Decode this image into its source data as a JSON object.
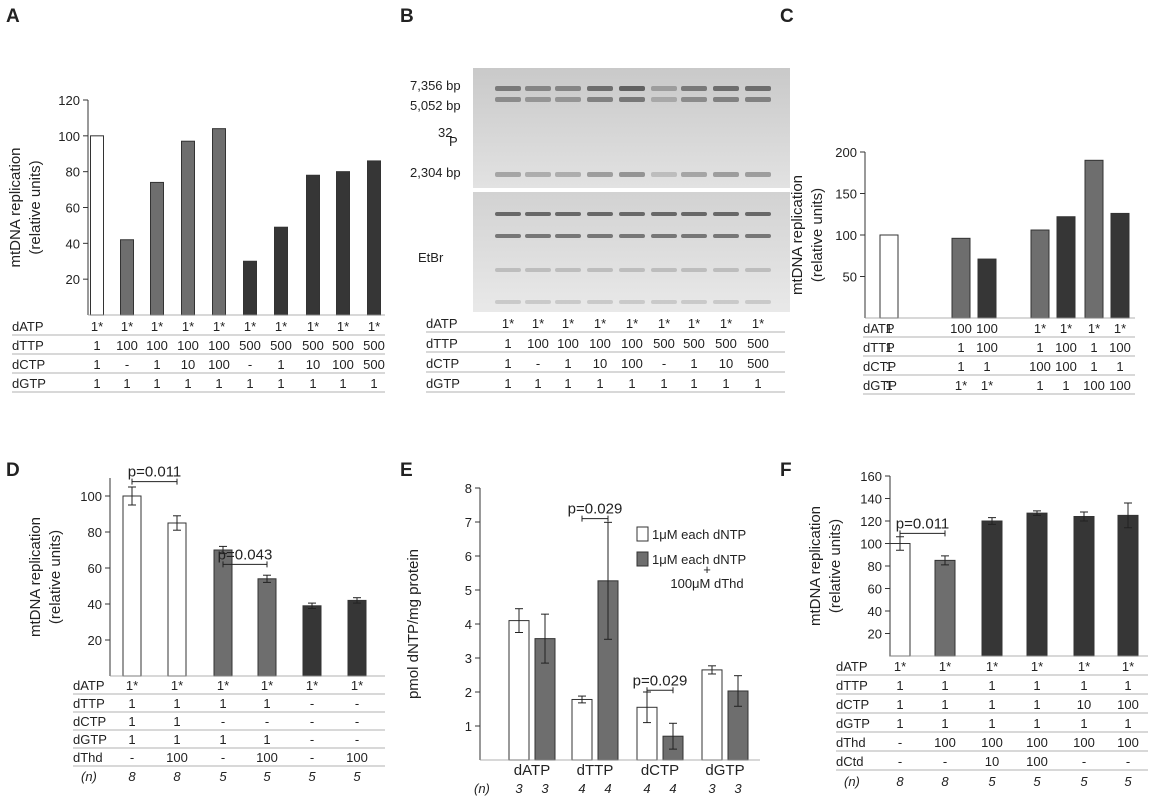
{
  "panel_labels": [
    "A",
    "B",
    "C",
    "D",
    "E",
    "F"
  ],
  "colors": {
    "white": "#ffffff",
    "light": "#6e6e6e",
    "dark": "#363636",
    "axis": "#333333",
    "rule": "#999999"
  },
  "chart_data": [
    {
      "panel": "A",
      "type": "bar",
      "ylabel": [
        "mtDNA replication",
        "(relative units)"
      ],
      "ylim": [
        0,
        120
      ],
      "yticks": [
        20,
        40,
        60,
        80,
        100,
        120
      ],
      "values": [
        100,
        42,
        74,
        97,
        104,
        30,
        49,
        78,
        80,
        86
      ],
      "fills": [
        "white",
        "light",
        "light",
        "light",
        "light",
        "dark",
        "dark",
        "dark",
        "dark",
        "dark"
      ],
      "table": [
        {
          "label": "dATP",
          "values": [
            "1*",
            "1*",
            "1*",
            "1*",
            "1*",
            "1*",
            "1*",
            "1*",
            "1*",
            "1*"
          ]
        },
        {
          "label": "dTTP",
          "values": [
            "1",
            "100",
            "100",
            "100",
            "100",
            "500",
            "500",
            "500",
            "500",
            "500"
          ]
        },
        {
          "label": "dCTP",
          "values": [
            "1",
            "-",
            "1",
            "10",
            "100",
            "-",
            "1",
            "10",
            "100",
            "500"
          ]
        },
        {
          "label": "dGTP",
          "values": [
            "1",
            "1",
            "1",
            "1",
            "1",
            "1",
            "1",
            "1",
            "1",
            "1"
          ]
        }
      ]
    },
    {
      "panel": "C",
      "type": "bar",
      "ylabel": [
        "mtDNA replication",
        "(relative units)"
      ],
      "ylim": [
        0,
        200
      ],
      "yticks": [
        50,
        100,
        150,
        200
      ],
      "values": [
        100,
        96,
        71,
        106,
        122,
        190,
        126
      ],
      "fills": [
        "white",
        "light",
        "dark",
        "light",
        "dark",
        "light",
        "dark"
      ],
      "table": [
        {
          "label": "dATP",
          "values": [
            "1",
            "100",
            "100",
            "1*",
            "1*",
            "1*",
            "1*"
          ]
        },
        {
          "label": "dTTP",
          "values": [
            "1",
            "1",
            "100",
            "1",
            "100",
            "1",
            "100"
          ]
        },
        {
          "label": "dCTP",
          "values": [
            "1",
            "1",
            "1",
            "100",
            "100",
            "1",
            "1"
          ]
        },
        {
          "label": "dGTP",
          "values": [
            "1",
            "1*",
            "1*",
            "1",
            "1",
            "100",
            "100"
          ]
        }
      ]
    },
    {
      "panel": "D",
      "type": "bar",
      "ylabel": [
        "mtDNA replication",
        "(relative units)"
      ],
      "ylim": [
        0,
        110
      ],
      "yticks": [
        20,
        40,
        60,
        80,
        100
      ],
      "values": [
        100,
        85,
        70,
        54,
        39,
        42
      ],
      "errors": [
        5,
        4,
        2,
        2,
        1.5,
        1.5
      ],
      "fills": [
        "white",
        "white",
        "light",
        "light",
        "dark",
        "dark"
      ],
      "annotations": [
        {
          "text": "p=0.011",
          "from": 0,
          "to": 1,
          "y": 108
        },
        {
          "text": "p=0.043",
          "from": 2,
          "to": 3,
          "y": 62
        }
      ],
      "table": [
        {
          "label": "dATP",
          "values": [
            "1*",
            "1*",
            "1*",
            "1*",
            "1*",
            "1*"
          ]
        },
        {
          "label": "dTTP",
          "values": [
            "1",
            "1",
            "1",
            "1",
            "-",
            "-"
          ]
        },
        {
          "label": "dCTP",
          "values": [
            "1",
            "1",
            "-",
            "-",
            "-",
            "-"
          ]
        },
        {
          "label": "dGTP",
          "values": [
            "1",
            "1",
            "1",
            "1",
            "-",
            "-"
          ]
        },
        {
          "label": "dThd",
          "values": [
            "-",
            "100",
            "-",
            "100",
            "-",
            "100"
          ]
        }
      ],
      "n_label": "(n)",
      "n": [
        "8",
        "8",
        "5",
        "5",
        "5",
        "5"
      ]
    },
    {
      "panel": "E",
      "type": "bar",
      "ylabel": [
        "pmol dNTP/mg protein"
      ],
      "ylim": [
        0,
        8
      ],
      "yticks": [
        1,
        2,
        3,
        4,
        5,
        6,
        7,
        8
      ],
      "categories": [
        "dATP",
        "dTTP",
        "dCTP",
        "dGTP"
      ],
      "series": [
        {
          "name": "1μM each dNTP",
          "fill": "white",
          "values": [
            4.1,
            1.78,
            1.55,
            2.65
          ],
          "errors": [
            0.35,
            0.1,
            0.45,
            0.12
          ]
        },
        {
          "name_lines": [
            "1μM each dNTP",
            "+",
            "100μM dThd"
          ],
          "fill": "light",
          "values": [
            3.57,
            5.27,
            0.7,
            2.03
          ],
          "errors": [
            0.72,
            1.72,
            0.38,
            0.45
          ]
        }
      ],
      "annotations": [
        {
          "text": "p=0.029",
          "category": 1,
          "y": 7.1
        },
        {
          "text": "p=0.029",
          "category": 2,
          "y": 2.05
        }
      ],
      "n_label": "(n)",
      "n": [
        "3",
        "3",
        "4",
        "4",
        "4",
        "4",
        "3",
        "3"
      ]
    },
    {
      "panel": "F",
      "type": "bar",
      "ylabel": [
        "mtDNA replication",
        "(relative units)"
      ],
      "ylim": [
        0,
        160
      ],
      "yticks": [
        20,
        40,
        60,
        80,
        100,
        120,
        140,
        160
      ],
      "values": [
        100,
        85,
        120,
        127,
        124,
        125
      ],
      "errors": [
        6,
        4,
        3,
        2,
        4,
        11
      ],
      "fills": [
        "white",
        "light",
        "dark",
        "dark",
        "dark",
        "dark"
      ],
      "annotations": [
        {
          "text": "p=0.011",
          "from": 0,
          "to": 1,
          "y": 109
        }
      ],
      "table": [
        {
          "label": "dATP",
          "values": [
            "1*",
            "1*",
            "1*",
            "1*",
            "1*",
            "1*"
          ]
        },
        {
          "label": "dTTP",
          "values": [
            "1",
            "1",
            "1",
            "1",
            "1",
            "1"
          ]
        },
        {
          "label": "dCTP",
          "values": [
            "1",
            "1",
            "1",
            "1",
            "10",
            "100"
          ]
        },
        {
          "label": "dGTP",
          "values": [
            "1",
            "1",
            "1",
            "1",
            "1",
            "1"
          ]
        },
        {
          "label": "dThd",
          "values": [
            "-",
            "100",
            "100",
            "100",
            "100",
            "100"
          ]
        },
        {
          "label": "dCtd",
          "values": [
            "-",
            "-",
            "10",
            "100",
            "-",
            "-"
          ]
        }
      ],
      "n_label": "(n)",
      "n": [
        "8",
        "8",
        "5",
        "5",
        "5",
        "5"
      ]
    }
  ],
  "gel_B": {
    "markers": [
      "7,356 bp",
      "5,052 bp",
      "2,304 bp"
    ],
    "label_32p_sup": "32",
    "label_32p": "P",
    "label_etbr": "EtBr",
    "table": [
      {
        "label": "dATP",
        "values": [
          "1*",
          "1*",
          "1*",
          "1*",
          "1*",
          "1*",
          "1*",
          "1*",
          "1*"
        ]
      },
      {
        "label": "dTTP",
        "values": [
          "1",
          "100",
          "100",
          "100",
          "100",
          "500",
          "500",
          "500",
          "500"
        ]
      },
      {
        "label": "dCTP",
        "values": [
          "1",
          "-",
          "1",
          "10",
          "100",
          "-",
          "1",
          "10",
          "500"
        ]
      },
      {
        "label": "dGTP",
        "values": [
          "1",
          "1",
          "1",
          "1",
          "1",
          "1",
          "1",
          "1",
          "1"
        ]
      }
    ]
  }
}
